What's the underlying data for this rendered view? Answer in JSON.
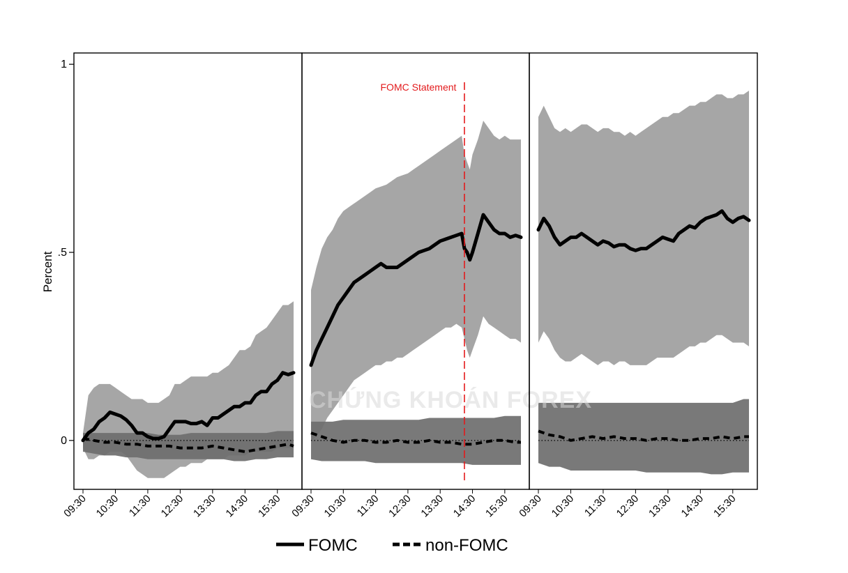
{
  "chart_data": {
    "type": "area",
    "ylabel": "Percent",
    "ylim": [
      -0.13,
      1.03
    ],
    "yticks": [
      {
        "value": 0,
        "label": "0"
      },
      {
        "value": 0.5,
        "label": ".5"
      },
      {
        "value": 1,
        "label": "1"
      }
    ],
    "grid": false,
    "legend_position": "bottom",
    "legend": [
      {
        "name": "FOMC",
        "style": "solid"
      },
      {
        "name": "non-FOMC",
        "style": "dashed"
      }
    ],
    "colors": {
      "fomc_band": "#a6a6a6",
      "nonfomc_band": "#6e6e6e",
      "line": "#000000",
      "annotation": "#e31a1c"
    },
    "annotation": {
      "label": "FOMC Statement",
      "panel": 1,
      "x_time": "14:15"
    },
    "watermark": "CHỨNG KHOÁN FOREX",
    "panels": [
      {
        "x_ticks": [
          "09:30",
          "10:30",
          "11:30",
          "12:30",
          "13:30",
          "14:30",
          "15:30"
        ],
        "x_range": [
          "09:30",
          "16:00"
        ],
        "series": [
          {
            "name": "FOMC",
            "times": [
              "09:30",
              "09:40",
              "09:50",
              "10:00",
              "10:10",
              "10:20",
              "10:30",
              "10:40",
              "10:50",
              "11:00",
              "11:10",
              "11:20",
              "11:30",
              "11:40",
              "11:50",
              "12:00",
              "12:10",
              "12:20",
              "12:30",
              "12:40",
              "12:50",
              "13:00",
              "13:10",
              "13:20",
              "13:30",
              "13:40",
              "13:50",
              "14:00",
              "14:10",
              "14:20",
              "14:30",
              "14:40",
              "14:50",
              "15:00",
              "15:10",
              "15:20",
              "15:30",
              "15:40",
              "15:50",
              "16:00"
            ],
            "mean": [
              0.0,
              0.02,
              0.03,
              0.05,
              0.06,
              0.075,
              0.07,
              0.065,
              0.055,
              0.04,
              0.02,
              0.02,
              0.01,
              0.005,
              0.005,
              0.01,
              0.03,
              0.05,
              0.05,
              0.05,
              0.045,
              0.045,
              0.05,
              0.04,
              0.06,
              0.06,
              0.07,
              0.08,
              0.09,
              0.09,
              0.1,
              0.1,
              0.12,
              0.13,
              0.13,
              0.15,
              0.16,
              0.18,
              0.175,
              0.18
            ],
            "upper": [
              0.02,
              0.12,
              0.14,
              0.15,
              0.15,
              0.15,
              0.14,
              0.13,
              0.12,
              0.11,
              0.11,
              0.11,
              0.1,
              0.1,
              0.1,
              0.11,
              0.12,
              0.15,
              0.15,
              0.16,
              0.17,
              0.17,
              0.17,
              0.17,
              0.18,
              0.18,
              0.19,
              0.2,
              0.22,
              0.24,
              0.24,
              0.25,
              0.28,
              0.29,
              0.3,
              0.32,
              0.34,
              0.36,
              0.36,
              0.37
            ],
            "lower": [
              -0.02,
              -0.05,
              -0.05,
              -0.04,
              -0.04,
              -0.03,
              -0.03,
              -0.03,
              -0.04,
              -0.06,
              -0.08,
              -0.09,
              -0.1,
              -0.1,
              -0.1,
              -0.1,
              -0.09,
              -0.08,
              -0.07,
              -0.07,
              -0.06,
              -0.06,
              -0.06,
              -0.05,
              -0.05,
              -0.05,
              -0.05,
              -0.04,
              -0.04,
              -0.04,
              -0.04,
              -0.03,
              -0.03,
              -0.03,
              -0.03,
              -0.03,
              -0.02,
              -0.02,
              -0.02,
              -0.02
            ]
          },
          {
            "name": "non-FOMC",
            "times": [
              "09:30",
              "09:50",
              "10:10",
              "10:30",
              "10:50",
              "11:10",
              "11:30",
              "11:50",
              "12:10",
              "12:30",
              "12:50",
              "13:10",
              "13:30",
              "13:50",
              "14:10",
              "14:30",
              "14:50",
              "15:10",
              "15:30",
              "15:50",
              "16:00"
            ],
            "mean": [
              0.005,
              0.0,
              -0.005,
              -0.005,
              -0.01,
              -0.01,
              -0.015,
              -0.015,
              -0.015,
              -0.02,
              -0.02,
              -0.02,
              -0.015,
              -0.02,
              -0.025,
              -0.03,
              -0.025,
              -0.02,
              -0.015,
              -0.01,
              -0.015
            ],
            "upper": [
              0.02,
              0.02,
              0.02,
              0.02,
              0.02,
              0.02,
              0.02,
              0.015,
              0.015,
              0.015,
              0.02,
              0.02,
              0.02,
              0.02,
              0.02,
              0.02,
              0.02,
              0.02,
              0.025,
              0.025,
              0.025
            ],
            "lower": [
              -0.03,
              -0.035,
              -0.04,
              -0.04,
              -0.045,
              -0.045,
              -0.05,
              -0.05,
              -0.05,
              -0.05,
              -0.05,
              -0.05,
              -0.05,
              -0.05,
              -0.055,
              -0.055,
              -0.05,
              -0.05,
              -0.045,
              -0.045,
              -0.045
            ]
          }
        ]
      },
      {
        "x_ticks": [
          "09:30",
          "10:30",
          "11:30",
          "12:30",
          "13:30",
          "14:30",
          "15:30"
        ],
        "x_range": [
          "09:30",
          "16:00"
        ],
        "series": [
          {
            "name": "FOMC",
            "times": [
              "09:30",
              "09:40",
              "09:50",
              "10:00",
              "10:10",
              "10:20",
              "10:30",
              "10:40",
              "10:50",
              "11:00",
              "11:10",
              "11:20",
              "11:30",
              "11:40",
              "11:50",
              "12:00",
              "12:10",
              "12:20",
              "12:30",
              "12:40",
              "12:50",
              "13:00",
              "13:10",
              "13:20",
              "13:30",
              "13:40",
              "13:50",
              "14:00",
              "14:10",
              "14:15",
              "14:20",
              "14:25",
              "14:30",
              "14:40",
              "14:50",
              "15:00",
              "15:10",
              "15:20",
              "15:30",
              "15:40",
              "15:50",
              "16:00"
            ],
            "mean": [
              0.2,
              0.24,
              0.27,
              0.3,
              0.33,
              0.36,
              0.38,
              0.4,
              0.42,
              0.43,
              0.44,
              0.45,
              0.46,
              0.47,
              0.46,
              0.46,
              0.46,
              0.47,
              0.48,
              0.49,
              0.5,
              0.505,
              0.51,
              0.52,
              0.53,
              0.535,
              0.54,
              0.545,
              0.55,
              0.51,
              0.5,
              0.48,
              0.5,
              0.55,
              0.6,
              0.58,
              0.56,
              0.55,
              0.55,
              0.54,
              0.545,
              0.54
            ],
            "upper": [
              0.4,
              0.46,
              0.51,
              0.54,
              0.56,
              0.59,
              0.61,
              0.62,
              0.63,
              0.64,
              0.65,
              0.66,
              0.67,
              0.675,
              0.68,
              0.69,
              0.7,
              0.705,
              0.71,
              0.72,
              0.73,
              0.74,
              0.75,
              0.76,
              0.77,
              0.78,
              0.79,
              0.8,
              0.81,
              0.76,
              0.74,
              0.72,
              0.76,
              0.8,
              0.85,
              0.83,
              0.81,
              0.8,
              0.81,
              0.8,
              0.8,
              0.8
            ],
            "lower": [
              0.0,
              0.01,
              0.03,
              0.06,
              0.08,
              0.1,
              0.12,
              0.14,
              0.16,
              0.17,
              0.18,
              0.19,
              0.2,
              0.2,
              0.21,
              0.21,
              0.22,
              0.22,
              0.23,
              0.24,
              0.25,
              0.26,
              0.27,
              0.28,
              0.29,
              0.3,
              0.3,
              0.31,
              0.3,
              0.27,
              0.24,
              0.22,
              0.24,
              0.28,
              0.33,
              0.31,
              0.3,
              0.29,
              0.28,
              0.27,
              0.27,
              0.26
            ]
          },
          {
            "name": "non-FOMC",
            "times": [
              "09:30",
              "09:50",
              "10:10",
              "10:30",
              "10:50",
              "11:10",
              "11:30",
              "11:50",
              "12:10",
              "12:30",
              "12:50",
              "13:10",
              "13:30",
              "13:50",
              "14:10",
              "14:30",
              "14:50",
              "15:10",
              "15:30",
              "15:50",
              "16:00"
            ],
            "mean": [
              0.02,
              0.01,
              0.0,
              -0.005,
              0.0,
              0.0,
              -0.005,
              -0.005,
              0.0,
              -0.005,
              -0.005,
              0.0,
              -0.005,
              -0.005,
              -0.01,
              -0.01,
              -0.005,
              0.0,
              0.0,
              -0.005,
              -0.005
            ],
            "upper": [
              0.05,
              0.05,
              0.05,
              0.055,
              0.055,
              0.055,
              0.055,
              0.055,
              0.055,
              0.055,
              0.055,
              0.06,
              0.06,
              0.06,
              0.06,
              0.06,
              0.06,
              0.06,
              0.065,
              0.065,
              0.065
            ],
            "lower": [
              -0.05,
              -0.055,
              -0.055,
              -0.055,
              -0.055,
              -0.055,
              -0.06,
              -0.06,
              -0.06,
              -0.06,
              -0.06,
              -0.06,
              -0.06,
              -0.06,
              -0.06,
              -0.065,
              -0.065,
              -0.065,
              -0.065,
              -0.065,
              -0.065
            ]
          }
        ]
      },
      {
        "x_ticks": [
          "09:30",
          "10:30",
          "11:30",
          "12:30",
          "13:30",
          "14:30",
          "15:30"
        ],
        "x_range": [
          "09:30",
          "16:00"
        ],
        "series": [
          {
            "name": "FOMC",
            "times": [
              "09:30",
              "09:40",
              "09:50",
              "10:00",
              "10:10",
              "10:20",
              "10:30",
              "10:40",
              "10:50",
              "11:00",
              "11:10",
              "11:20",
              "11:30",
              "11:40",
              "11:50",
              "12:00",
              "12:10",
              "12:20",
              "12:30",
              "12:40",
              "12:50",
              "13:00",
              "13:10",
              "13:20",
              "13:30",
              "13:40",
              "13:50",
              "14:00",
              "14:10",
              "14:20",
              "14:30",
              "14:40",
              "14:50",
              "15:00",
              "15:10",
              "15:20",
              "15:30",
              "15:40",
              "15:50",
              "16:00"
            ],
            "mean": [
              0.56,
              0.59,
              0.57,
              0.54,
              0.52,
              0.53,
              0.54,
              0.54,
              0.55,
              0.54,
              0.53,
              0.52,
              0.53,
              0.525,
              0.515,
              0.52,
              0.52,
              0.51,
              0.505,
              0.51,
              0.51,
              0.52,
              0.53,
              0.54,
              0.535,
              0.53,
              0.55,
              0.56,
              0.57,
              0.565,
              0.58,
              0.59,
              0.595,
              0.6,
              0.61,
              0.59,
              0.58,
              0.59,
              0.595,
              0.585
            ],
            "upper": [
              0.86,
              0.89,
              0.86,
              0.83,
              0.82,
              0.83,
              0.82,
              0.83,
              0.84,
              0.84,
              0.83,
              0.82,
              0.83,
              0.83,
              0.82,
              0.82,
              0.81,
              0.82,
              0.81,
              0.82,
              0.83,
              0.84,
              0.85,
              0.86,
              0.86,
              0.87,
              0.87,
              0.88,
              0.89,
              0.89,
              0.9,
              0.9,
              0.91,
              0.92,
              0.92,
              0.91,
              0.91,
              0.92,
              0.92,
              0.93
            ],
            "lower": [
              0.26,
              0.29,
              0.27,
              0.24,
              0.22,
              0.21,
              0.21,
              0.22,
              0.23,
              0.22,
              0.21,
              0.2,
              0.21,
              0.21,
              0.2,
              0.21,
              0.21,
              0.2,
              0.2,
              0.2,
              0.2,
              0.21,
              0.22,
              0.22,
              0.22,
              0.22,
              0.23,
              0.24,
              0.25,
              0.25,
              0.26,
              0.26,
              0.27,
              0.28,
              0.28,
              0.27,
              0.26,
              0.26,
              0.26,
              0.25
            ]
          },
          {
            "name": "non-FOMC",
            "times": [
              "09:30",
              "09:50",
              "10:10",
              "10:30",
              "10:50",
              "11:10",
              "11:30",
              "11:50",
              "12:10",
              "12:30",
              "12:50",
              "13:10",
              "13:30",
              "13:50",
              "14:10",
              "14:30",
              "14:50",
              "15:10",
              "15:30",
              "15:50",
              "16:00"
            ],
            "mean": [
              0.025,
              0.015,
              0.01,
              0.0,
              0.005,
              0.01,
              0.005,
              0.01,
              0.005,
              0.005,
              0.0,
              0.005,
              0.005,
              0.0,
              0.0,
              0.005,
              0.005,
              0.01,
              0.005,
              0.01,
              0.01
            ],
            "upper": [
              0.1,
              0.1,
              0.1,
              0.1,
              0.1,
              0.1,
              0.1,
              0.1,
              0.1,
              0.1,
              0.1,
              0.1,
              0.1,
              0.1,
              0.1,
              0.1,
              0.1,
              0.1,
              0.1,
              0.11,
              0.11
            ],
            "lower": [
              -0.06,
              -0.07,
              -0.07,
              -0.08,
              -0.08,
              -0.08,
              -0.08,
              -0.08,
              -0.08,
              -0.08,
              -0.085,
              -0.085,
              -0.085,
              -0.085,
              -0.085,
              -0.085,
              -0.09,
              -0.09,
              -0.085,
              -0.085,
              -0.085
            ]
          }
        ]
      }
    ]
  }
}
